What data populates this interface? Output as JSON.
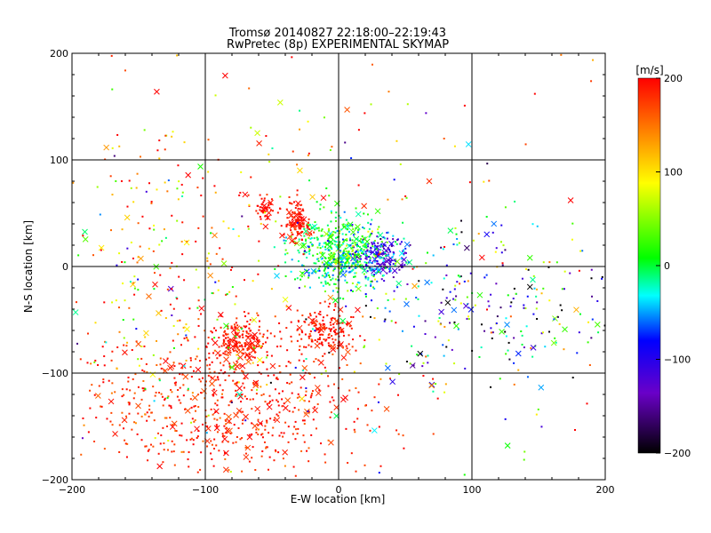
{
  "chart_data": {
    "type": "scatter",
    "title_line1": "Tromsø 20140827 22:18:00–22:19:43",
    "title_line2": "RwPretec (8p) EXPERIMENTAL SKYMAP",
    "xlabel": "E-W location [km]",
    "ylabel": "N-S location [km]",
    "xlim": [
      -200,
      200
    ],
    "ylim": [
      -200,
      200
    ],
    "x_ticks": [
      "-200",
      "-100",
      "0",
      "100",
      "200"
    ],
    "y_ticks": [
      "-200",
      "-100",
      "0",
      "100",
      "200"
    ],
    "grid": true,
    "colorbar": {
      "unit_label": "[m/s]",
      "range": [
        -200,
        200
      ],
      "ticks": [
        "200",
        "100",
        "0",
        "-100",
        "-200"
      ],
      "colors": [
        "#000000",
        "#8000ff",
        "#0000ff",
        "#00ffff",
        "#00ff00",
        "#ffff00",
        "#ff0000"
      ]
    },
    "marker_legend": {
      "dot": "small dot",
      "cross": "x"
    },
    "clusters": [
      {
        "name": "center-east-blue",
        "cx": 30,
        "cy": 10,
        "sx": 10,
        "sy": 10,
        "n": 160,
        "v": -120,
        "vs": 20
      },
      {
        "name": "center-green",
        "cx": 0,
        "cy": 15,
        "sx": 15,
        "sy": 18,
        "n": 380,
        "v": 20,
        "vs": 30
      },
      {
        "name": "center-cyan",
        "cx": 10,
        "cy": 5,
        "sx": 25,
        "sy": 15,
        "n": 200,
        "v": -30,
        "vs": 25
      },
      {
        "name": "north-red-1",
        "cx": -30,
        "cy": 40,
        "sx": 5,
        "sy": 10,
        "n": 120,
        "v": 190,
        "vs": 10
      },
      {
        "name": "north-red-2",
        "cx": -55,
        "cy": 55,
        "sx": 4,
        "sy": 5,
        "n": 50,
        "v": 195,
        "vs": 5
      },
      {
        "name": "south-red-1",
        "cx": -75,
        "cy": -70,
        "sx": 12,
        "sy": 10,
        "n": 180,
        "v": 190,
        "vs": 10
      },
      {
        "name": "south-red-2",
        "cx": -10,
        "cy": -60,
        "sx": 10,
        "sy": 10,
        "n": 160,
        "v": 190,
        "vs": 10
      },
      {
        "name": "southwest-red-diffuse",
        "cx": -85,
        "cy": -130,
        "sx": 55,
        "sy": 35,
        "n": 650,
        "v": 185,
        "vs": 20
      },
      {
        "name": "scatter-mixed-east",
        "cx": 110,
        "cy": -40,
        "sx": 55,
        "sy": 45,
        "n": 260,
        "v": -60,
        "vs": 110
      },
      {
        "name": "scatter-mixed-west",
        "cx": -120,
        "cy": 10,
        "sx": 55,
        "sy": 70,
        "n": 260,
        "v": 120,
        "vs": 90
      },
      {
        "name": "scatter-far",
        "cx": 0,
        "cy": 0,
        "sx": 130,
        "sy": 120,
        "n": 260,
        "v": 80,
        "vs": 130
      }
    ]
  }
}
